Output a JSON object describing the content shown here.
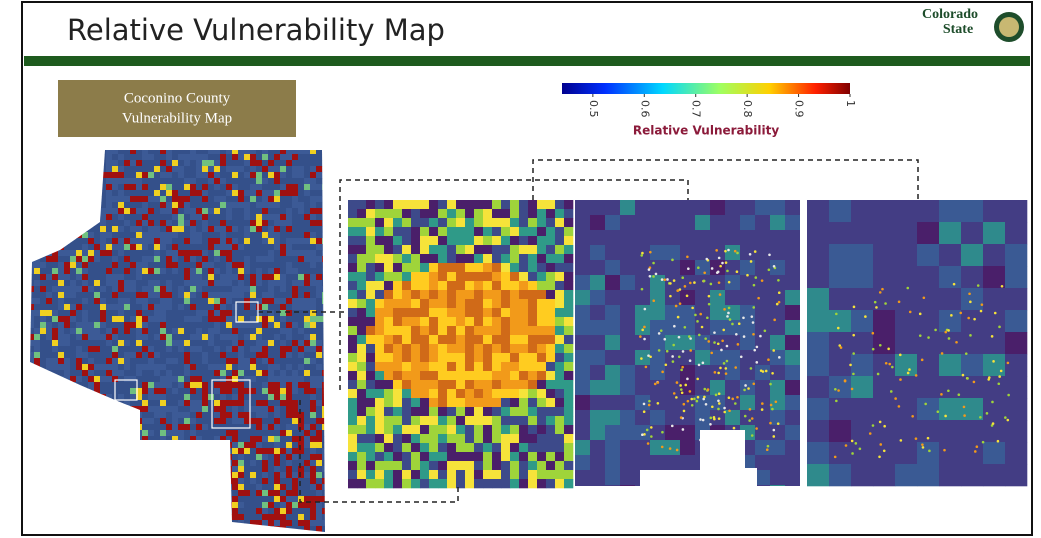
{
  "header": {
    "title": "Relative Vulnerability Map",
    "logo": [
      "Colorado",
      "State"
    ]
  },
  "label_box": [
    "Coconino County",
    "Vulnerability Map"
  ],
  "colorbar": {
    "label": "Relative Vulnerability",
    "lim": [
      0.44,
      1
    ],
    "ticks": [
      0.5,
      0.6,
      0.7,
      0.8,
      0.9,
      1
    ]
  }
}
